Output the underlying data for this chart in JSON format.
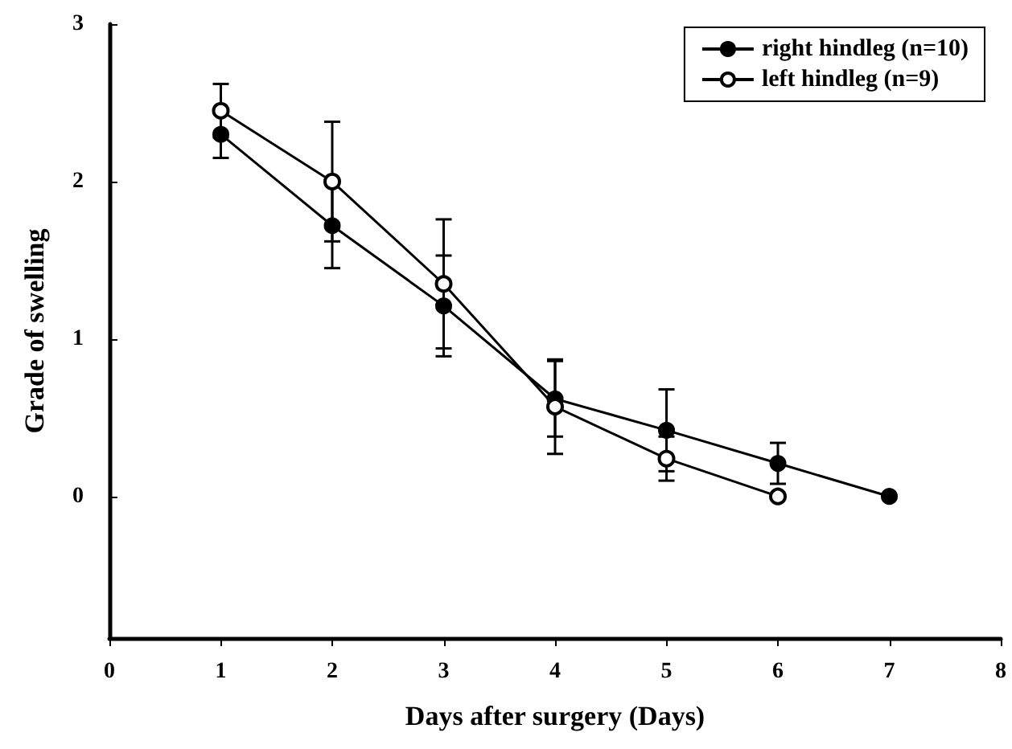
{
  "chart_data": {
    "type": "line",
    "xlabel": "Days after surgery (Days)",
    "ylabel": "Grade of swelling",
    "xlim": [
      0,
      8
    ],
    "xticks": [
      0,
      1,
      2,
      3,
      4,
      5,
      6,
      7,
      8
    ],
    "ylim": [
      -0.9,
      3
    ],
    "yticks": [
      0,
      1,
      2,
      3
    ],
    "series": [
      {
        "name": "right hindleg (n=10)",
        "color": "#000000",
        "x": [
          1,
          2,
          3,
          4,
          5,
          6,
          7
        ],
        "values": [
          2.3,
          1.72,
          1.21,
          0.62,
          0.42,
          0.21,
          0
        ],
        "errors": [
          0.15,
          0.27,
          0.32,
          0.24,
          0.26,
          0.13,
          null
        ]
      },
      {
        "name": "left hindleg (n=9)",
        "color": "#000000",
        "x": [
          1,
          2,
          3,
          4,
          5,
          6
        ],
        "values": [
          2.45,
          2.0,
          1.35,
          0.57,
          0.24,
          0
        ],
        "errors": [
          0.17,
          0.38,
          0.41,
          0.3,
          0.14,
          null
        ]
      }
    ],
    "marker": "circle",
    "line_style": "solid",
    "legend": "top right",
    "grid": false
  }
}
